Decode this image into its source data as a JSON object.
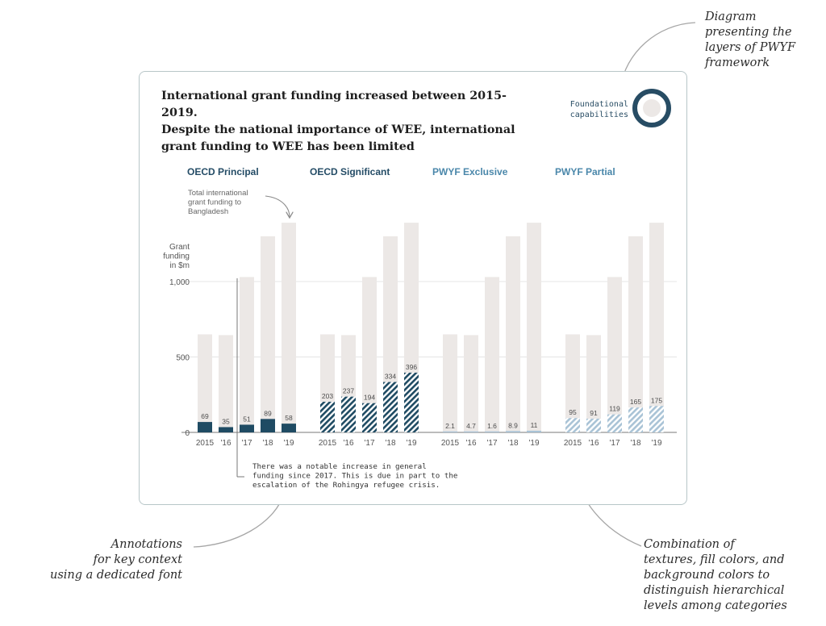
{
  "side_notes": {
    "diagram": "Diagram\npresenting the\nlayers of PWYF\nframework",
    "annotations": "Annotations\nfor key context\nusing a dedicated font",
    "textures": "Combination of\ntextures, fill colors, and\nbackground colors to\ndistinguish hierarchical\nlevels among categories"
  },
  "card": {
    "title": "International grant funding increased between 2015-2019.\nDespite the national importance of WEE, international\ngrant funding to WEE has been limited",
    "legend_label": "Foundational\ncapabilities"
  },
  "chart_data": {
    "type": "bar",
    "categories": [
      "2015",
      "'16",
      "'17",
      "'18",
      "'19"
    ],
    "ylabel": "Grant\nfunding\nin $m",
    "ylim": [
      0,
      1400
    ],
    "yticks": [
      0,
      500,
      1000
    ],
    "ytick_labels": [
      "0",
      "500",
      "1,000"
    ],
    "background_series": {
      "name": "Total international grant funding to Bangladesh",
      "values": [
        650,
        645,
        1030,
        1300,
        1390
      ]
    },
    "panels": [
      {
        "title": "OECD Principal",
        "values": [
          69,
          35,
          51,
          89,
          58
        ],
        "labels": [
          "69",
          "35",
          "51",
          "89",
          "58"
        ],
        "fill": "solid-dark"
      },
      {
        "title": "OECD Significant",
        "values": [
          203,
          237,
          194,
          334,
          396
        ],
        "labels": [
          "203",
          "237",
          "194",
          "334",
          "396"
        ],
        "fill": "hatch-dark"
      },
      {
        "title": "PWYF Exclusive",
        "values": [
          2.1,
          4.7,
          1.6,
          8.9,
          11
        ],
        "labels": [
          "2.1",
          "4.7",
          "1.6",
          "8.9",
          "11"
        ],
        "fill": "solid-light"
      },
      {
        "title": "PWYF Partial",
        "values": [
          95,
          91,
          119,
          165,
          175
        ],
        "labels": [
          "95",
          "91",
          "119",
          "165",
          "175"
        ],
        "fill": "hatch-light"
      }
    ],
    "annotations": {
      "total": "Total international\ngrant funding to\nBangladesh",
      "increase": "There was a notable increase in general\nfunding since 2017. This is due in part to the\nescalation of the Rohingya refugee crisis."
    },
    "colors": {
      "background_bar": "#ece8e6",
      "dark": "#1f4b63",
      "light": "#a9c3d6",
      "oecd_title": "#244c66",
      "pwyf_title": "#4a87aa"
    },
    "grid": true
  }
}
